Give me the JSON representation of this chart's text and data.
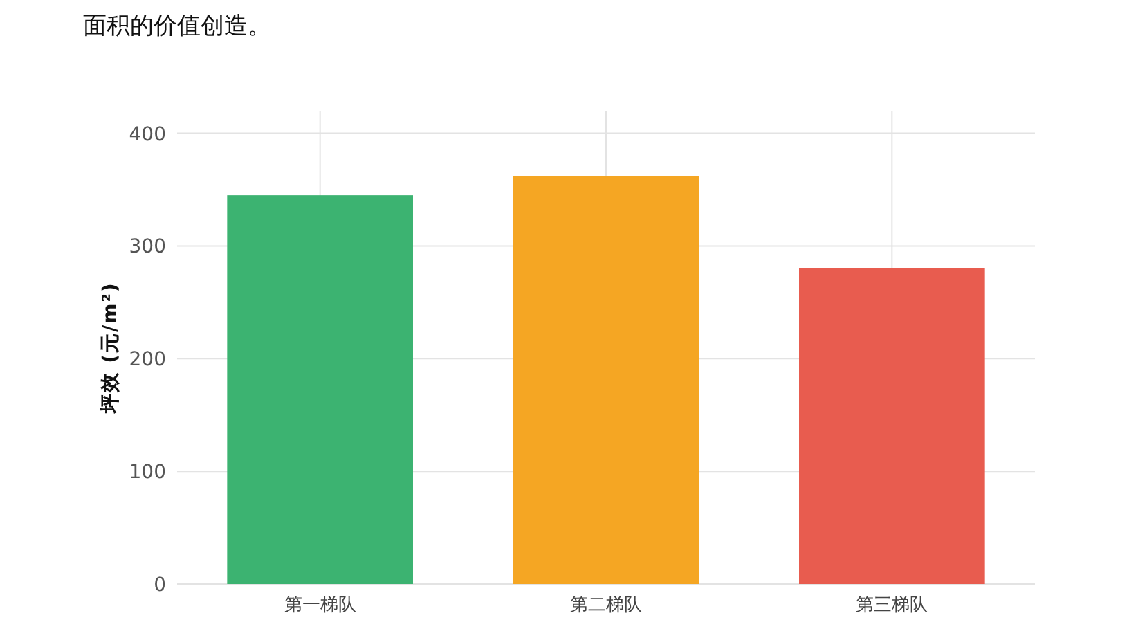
{
  "chart_data": {
    "type": "bar",
    "ylabel": "坪效 (元/m²)",
    "categories": [
      "第一梯队",
      "第二梯队",
      "第三梯队"
    ],
    "values": [
      345,
      362,
      280
    ],
    "colors": [
      "#3cb371",
      "#f5a623",
      "#e85c4f"
    ],
    "ylim": [
      0,
      420
    ],
    "yticks": [
      0,
      100,
      200,
      300,
      400
    ],
    "grid": true,
    "annotations": [
      "面积的价值创造。"
    ]
  }
}
